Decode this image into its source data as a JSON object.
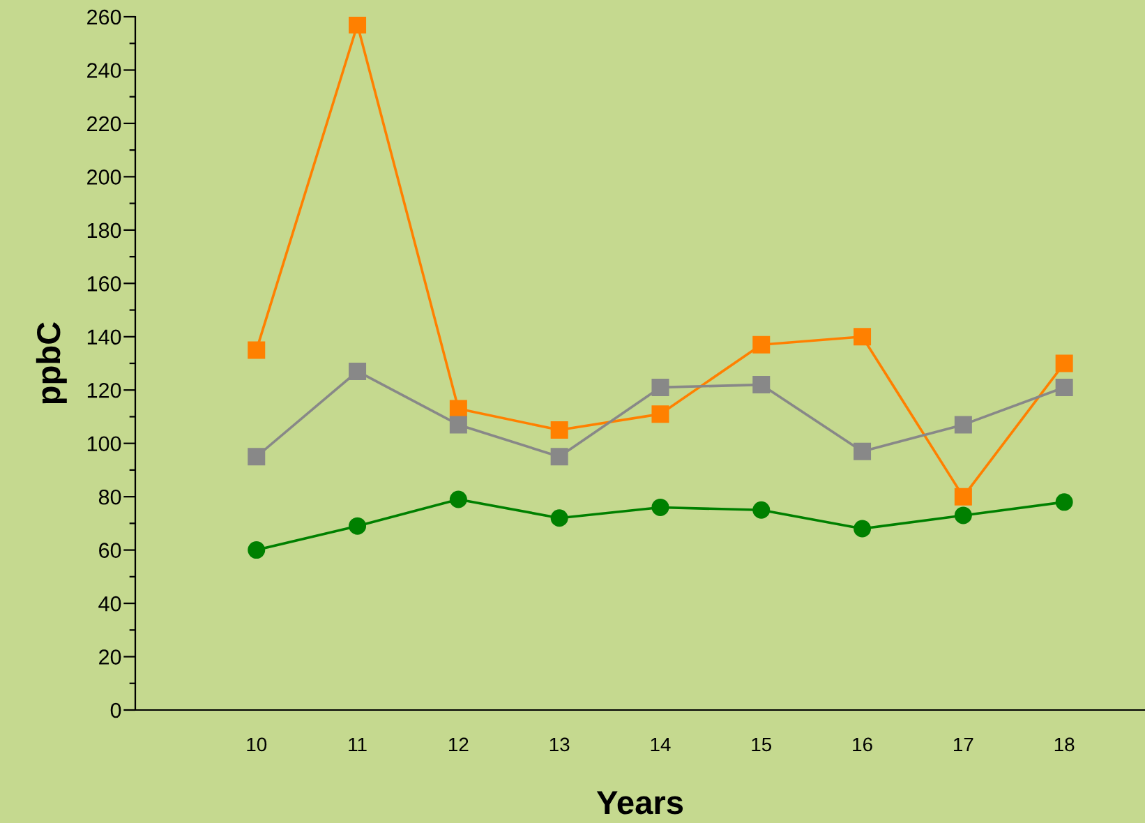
{
  "chart_data": {
    "type": "line",
    "xlabel": "Years",
    "ylabel": "ppbC",
    "categories": [
      "10",
      "11",
      "12",
      "13",
      "14",
      "15",
      "16",
      "17",
      "18"
    ],
    "series": [
      {
        "color": "#ff8000",
        "marker": "square",
        "values": [
          135,
          257,
          113,
          105,
          111,
          137,
          140,
          80,
          130
        ]
      },
      {
        "color": "#888888",
        "marker": "square",
        "values": [
          95,
          127,
          107,
          95,
          121,
          122,
          97,
          107,
          121
        ]
      },
      {
        "color": "#008000",
        "marker": "circle",
        "values": [
          60,
          69,
          79,
          72,
          76,
          75,
          68,
          73,
          78
        ]
      }
    ],
    "ylim": [
      0,
      260
    ],
    "yticks": [
      0,
      {
        "value": 10,
        "label": null
      },
      20,
      {
        "value": 30,
        "label": null
      },
      40,
      {
        "value": 50,
        "label": null
      },
      60,
      {
        "value": 70,
        "label": null
      },
      80,
      {
        "value": 90,
        "label": null
      },
      100,
      {
        "value": 110,
        "label": null
      },
      120,
      {
        "value": 130,
        "label": null
      },
      140,
      {
        "value": 150,
        "label": null
      },
      160,
      {
        "value": 170,
        "label": null
      },
      180,
      {
        "value": 190,
        "label": null
      },
      200,
      {
        "value": 210,
        "label": null
      },
      220,
      {
        "value": 230,
        "label": null
      },
      240,
      {
        "value": 250,
        "label": null
      },
      260
    ],
    "grid": false,
    "legend": false,
    "line_style": "solid"
  }
}
